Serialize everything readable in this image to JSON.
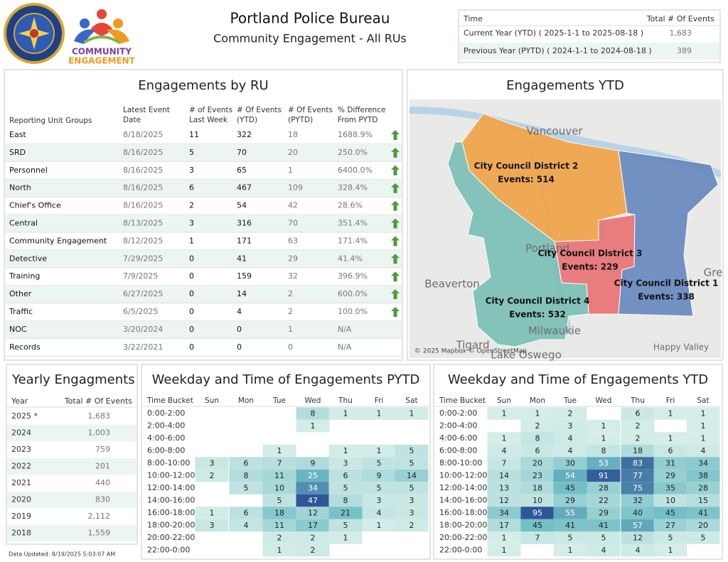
{
  "header": {
    "title": "Portland Police Bureau",
    "subtitle": "Community Engagement - All RUs",
    "logo_text": [
      "COMMUNITY",
      "ENGAGEMENT"
    ]
  },
  "summary": {
    "headers": [
      "Time",
      "Total # Of Events"
    ],
    "rows": [
      [
        "Current Year (YTD) ( 2025-1-1 to 2025-08-18 )",
        "1,683"
      ],
      [
        "Previous Year (PYTD) ( 2024-1-1 to 2024-08-18 )",
        "389"
      ]
    ]
  },
  "ru_table": {
    "title": "Engagements by RU",
    "headers": [
      [
        "Reporting Unit Groups"
      ],
      [
        "Latest Event",
        "Date"
      ],
      [
        "# of Events",
        "Last Week"
      ],
      [
        "# Of Events",
        "(YTD)"
      ],
      [
        "# Of Events",
        "(PYTD)"
      ],
      [
        "% Difference",
        "From PYTD"
      ]
    ],
    "rows": [
      [
        "East",
        "8/18/2025",
        "11",
        "322",
        "18",
        "1688.9%"
      ],
      [
        "SRD",
        "8/16/2025",
        "5",
        "70",
        "20",
        "250.0%"
      ],
      [
        "Personnel",
        "8/16/2025",
        "3",
        "65",
        "1",
        "6400.0%"
      ],
      [
        "North",
        "8/16/2025",
        "6",
        "467",
        "109",
        "328.4%"
      ],
      [
        "Chief's Office",
        "8/16/2025",
        "2",
        "54",
        "42",
        "28.6%"
      ],
      [
        "Central",
        "8/13/2025",
        "3",
        "316",
        "70",
        "351.4%"
      ],
      [
        "Community Engagement",
        "8/12/2025",
        "1",
        "171",
        "63",
        "171.4%"
      ],
      [
        "Detective",
        "7/29/2025",
        "0",
        "41",
        "29",
        "41.4%"
      ],
      [
        "Training",
        "7/9/2025",
        "0",
        "159",
        "32",
        "396.9%"
      ],
      [
        "Other",
        "6/27/2025",
        "0",
        "14",
        "2",
        "600.0%"
      ],
      [
        "Traffic",
        "6/5/2025",
        "0",
        "4",
        "2",
        "100.0%"
      ],
      [
        "NOC",
        "3/20/2024",
        "0",
        "0",
        "1",
        "N/A"
      ],
      [
        "Records",
        "3/22/2021",
        "0",
        "0",
        "0",
        "N/A"
      ]
    ],
    "trends": [
      "up",
      "up",
      "up",
      "up",
      "up",
      "up",
      "up",
      "up",
      "up",
      "up",
      "up",
      null,
      null
    ]
  },
  "map": {
    "title": "Engagements YTD",
    "places": [
      "Vancouver",
      "Portland",
      "Beaverton",
      "Milwaukie",
      "Tigard",
      "Lake Oswego",
      "Happy Valley",
      "Gre"
    ],
    "districts": [
      {
        "name": "City Council District 2",
        "events": "Events: 514",
        "color": "#f0a449"
      },
      {
        "name": "City Council District 3",
        "events": "Events: 229",
        "color": "#e97377"
      },
      {
        "name": "City Council District 1",
        "events": "Events: 338",
        "color": "#6889bf"
      },
      {
        "name": "City Council District 4",
        "events": "Events: 532",
        "color": "#7cc0b6"
      }
    ],
    "attribution": "© 2025 Mapbox © OpenStreetMap"
  },
  "yearly": {
    "title": "Yearly Engagments",
    "headers": [
      "Year",
      "Total # Of Events"
    ],
    "rows": [
      [
        "2025 *",
        "1,683"
      ],
      [
        "2024",
        "1,003"
      ],
      [
        "2023",
        "759"
      ],
      [
        "2022",
        "201"
      ],
      [
        "2021",
        "440"
      ],
      [
        "2020",
        "830"
      ],
      [
        "2019",
        "2,112"
      ],
      [
        "2018",
        "1,559"
      ]
    ]
  },
  "footnote": "Data Updated: 8/19/2025 5:03:07 AM",
  "heatmaps": [
    {
      "title": "Weekday and Time of Engagements PYTD",
      "headers": [
        "Time Bucket",
        "Sun",
        "Mon",
        "Tue",
        "Wed",
        "Thu",
        "Fri",
        "Sat"
      ],
      "buckets": [
        "0:00-2:00",
        "2:00-4:00",
        "4:00-6:00",
        "6:00-8:00",
        "8:00-10:00",
        "10:00-12:00",
        "12:00-14:00",
        "14:00-16:00",
        "16:00-18:00",
        "18:00-20:00",
        "20:00-22:00",
        "22:00-0:00"
      ],
      "values": [
        [
          null,
          null,
          null,
          8,
          1,
          1,
          1
        ],
        [
          null,
          null,
          null,
          1,
          null,
          null,
          null
        ],
        [
          null,
          null,
          null,
          null,
          null,
          null,
          null
        ],
        [
          null,
          null,
          1,
          null,
          1,
          1,
          5
        ],
        [
          3,
          6,
          7,
          9,
          3,
          5,
          5
        ],
        [
          2,
          8,
          11,
          25,
          6,
          9,
          14
        ],
        [
          null,
          5,
          10,
          34,
          5,
          5,
          5
        ],
        [
          null,
          null,
          5,
          47,
          8,
          3,
          3
        ],
        [
          1,
          6,
          18,
          12,
          21,
          4,
          3
        ],
        [
          3,
          4,
          11,
          17,
          5,
          1,
          2
        ],
        [
          null,
          null,
          2,
          2,
          1,
          null,
          null
        ],
        [
          null,
          null,
          1,
          2,
          null,
          null,
          null
        ]
      ]
    },
    {
      "title": "Weekday and Time of Engagements YTD",
      "headers": [
        "Time Bucket",
        "Sun",
        "Mon",
        "Tue",
        "Wed",
        "Thu",
        "Fri",
        "Sat"
      ],
      "buckets": [
        "0:00-2:00",
        "2:00-4:00",
        "4:00-6:00",
        "6:00-8:00",
        "8:00-10:00",
        "10:00-12:00",
        "12:00-14:00",
        "14:00-16:00",
        "16:00-18:00",
        "18:00-20:00",
        "20:00-22:00",
        "22:00-0:00"
      ],
      "values": [
        [
          1,
          1,
          2,
          null,
          6,
          1,
          1
        ],
        [
          null,
          2,
          3,
          1,
          2,
          null,
          1
        ],
        [
          1,
          8,
          4,
          1,
          2,
          1,
          1
        ],
        [
          4,
          6,
          4,
          8,
          18,
          6,
          4
        ],
        [
          7,
          20,
          30,
          53,
          83,
          31,
          34
        ],
        [
          14,
          23,
          54,
          91,
          77,
          29,
          38
        ],
        [
          13,
          18,
          45,
          28,
          75,
          35,
          28
        ],
        [
          12,
          10,
          29,
          22,
          32,
          10,
          15
        ],
        [
          34,
          95,
          55,
          29,
          40,
          45,
          41
        ],
        [
          17,
          45,
          41,
          41,
          57,
          27,
          20
        ],
        [
          1,
          7,
          5,
          5,
          12,
          5,
          5
        ],
        [
          1,
          null,
          1,
          4,
          4,
          1,
          null
        ]
      ]
    }
  ]
}
